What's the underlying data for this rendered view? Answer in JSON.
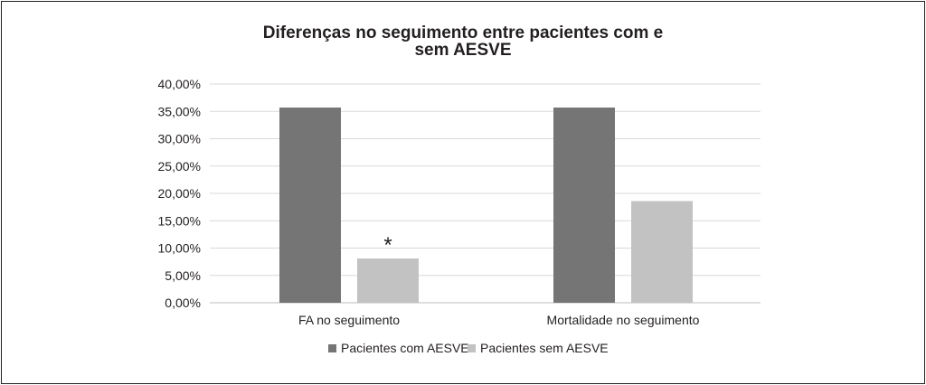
{
  "chart_data": {
    "type": "bar",
    "title": "Diferenças no seguimento entre pacientes com e sem AESVE",
    "title_lines": [
      "Diferenças no seguimento entre pacientes com e",
      "sem AESVE"
    ],
    "categories": [
      "FA no seguimento",
      "Mortalidade no seguimento"
    ],
    "series": [
      {
        "name": "Pacientes com AESVE",
        "values": [
          35.7,
          35.7
        ],
        "color": "#757575"
      },
      {
        "name": "Pacientes sem AESVE",
        "values": [
          8.1,
          18.6
        ],
        "color": "#c2c2c2"
      }
    ],
    "ylim": [
      0,
      40
    ],
    "yticks": [
      0,
      5,
      10,
      15,
      20,
      25,
      30,
      35,
      40
    ],
    "ytick_labels": [
      "0,00%",
      "5,00%",
      "10,00%",
      "15,00%",
      "20,00%",
      "25,00%",
      "30,00%",
      "35,00%",
      "40,00%"
    ],
    "xlabel": "",
    "ylabel": "",
    "grid": true,
    "legend_position": "bottom",
    "annotations": [
      {
        "text": "*",
        "category": "FA no seguimento",
        "series": "Pacientes sem AESVE"
      }
    ]
  }
}
